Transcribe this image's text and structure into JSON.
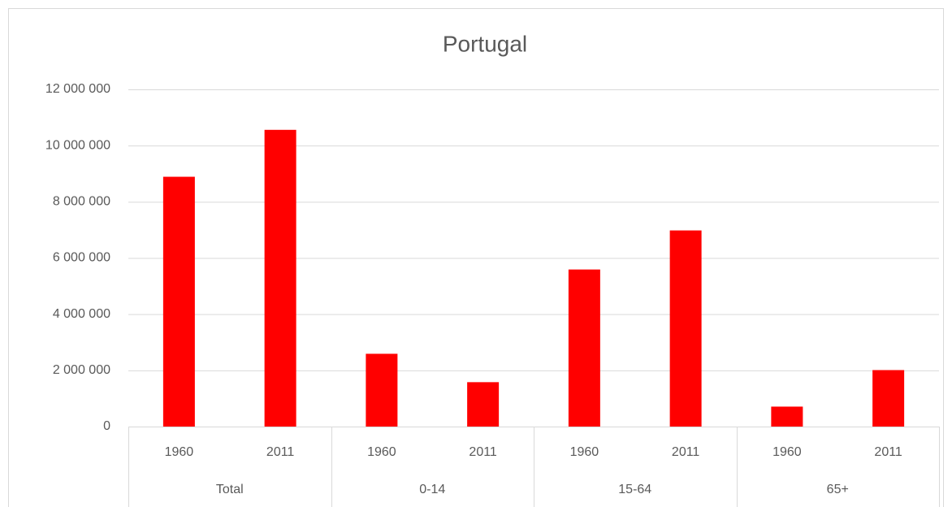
{
  "chart_data": {
    "type": "bar",
    "title": "Portugal",
    "categories": [
      "1960",
      "2011",
      "1960",
      "2011",
      "1960",
      "2011",
      "1960",
      "2011"
    ],
    "groups": [
      "Total",
      "0-14",
      "15-64",
      "65+"
    ],
    "values": [
      8890000,
      10560000,
      2590000,
      1580000,
      5590000,
      6980000,
      710000,
      2010000
    ],
    "color": "#ff0000",
    "ylim": [
      0,
      12000000
    ],
    "yticks": [
      0,
      {
        "value": 2000000,
        "label": "2 000 000"
      },
      {
        "value": 4000000,
        "label": "4 000 000"
      },
      {
        "value": 6000000,
        "label": "6 000 000"
      },
      {
        "value": 8000000,
        "label": "8 000 000"
      },
      {
        "value": 10000000,
        "label": "10 000 000"
      },
      {
        "value": 12000000,
        "label": "12 000 000"
      }
    ],
    "grid": true
  }
}
